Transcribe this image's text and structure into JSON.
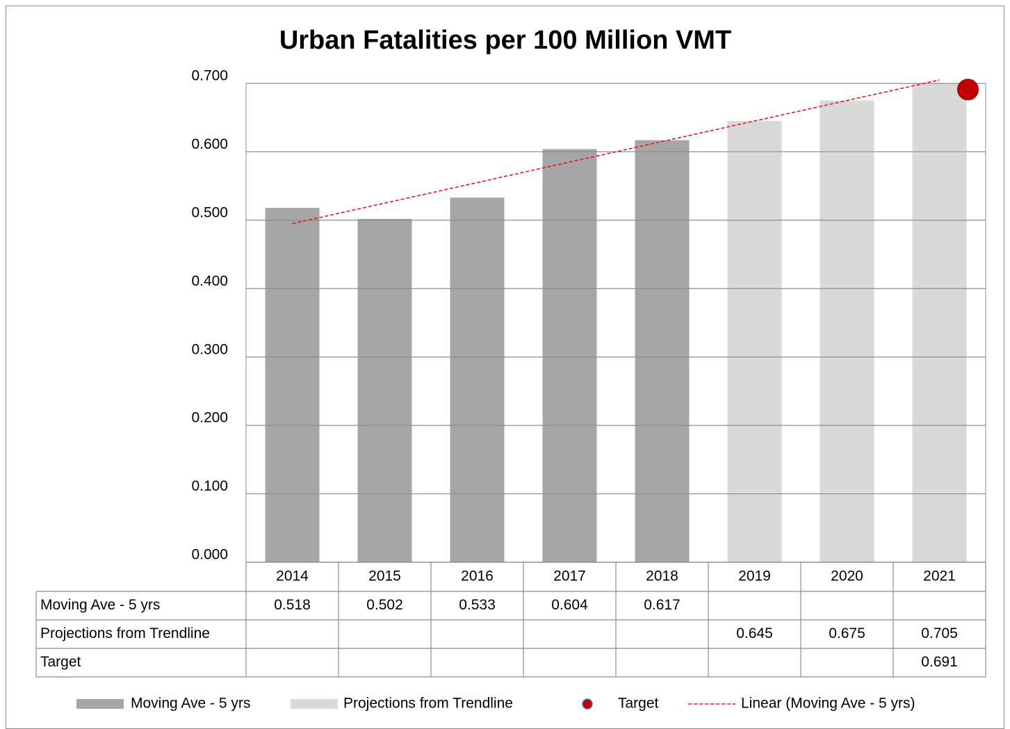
{
  "chart_data": {
    "type": "bar",
    "title": "Urban Fatalities per 100 Million VMT",
    "categories": [
      "2014",
      "2015",
      "2016",
      "2017",
      "2018",
      "2019",
      "2020",
      "2021"
    ],
    "series": [
      {
        "name": "Moving Ave - 5 yrs",
        "type": "bar",
        "color": "#a6a6a6",
        "values": [
          0.518,
          0.502,
          0.533,
          0.604,
          0.617,
          null,
          null,
          null
        ]
      },
      {
        "name": "Projections from Trendline",
        "type": "bar",
        "color": "#d9d9d9",
        "values": [
          null,
          null,
          null,
          null,
          null,
          0.645,
          0.675,
          0.705
        ]
      },
      {
        "name": "Target",
        "type": "scatter",
        "color": "#c00000",
        "values": [
          null,
          null,
          null,
          null,
          null,
          null,
          null,
          0.691
        ]
      },
      {
        "name": "Linear (Moving Ave - 5 yrs)",
        "type": "line",
        "dashed": true,
        "color": "#e8141b",
        "values": [
          0.495,
          0.525,
          0.555,
          0.585,
          0.615,
          0.645,
          0.675,
          0.705
        ]
      }
    ],
    "table_series": [
      0,
      1,
      2
    ],
    "ylim": [
      0,
      0.7
    ],
    "yticks": [
      {
        "value": 0,
        "label": "0.000"
      },
      {
        "value": 0.1,
        "label": "0.100"
      },
      {
        "value": 0.2,
        "label": "0.200"
      },
      {
        "value": 0.3,
        "label": "0.300"
      },
      {
        "value": 0.4,
        "label": "0.400"
      },
      {
        "value": 0.5,
        "label": "0.500"
      },
      {
        "value": 0.6,
        "label": "0.600"
      },
      {
        "value": 0.7,
        "label": "0.700"
      }
    ],
    "grid": true,
    "legend": "bottom"
  }
}
